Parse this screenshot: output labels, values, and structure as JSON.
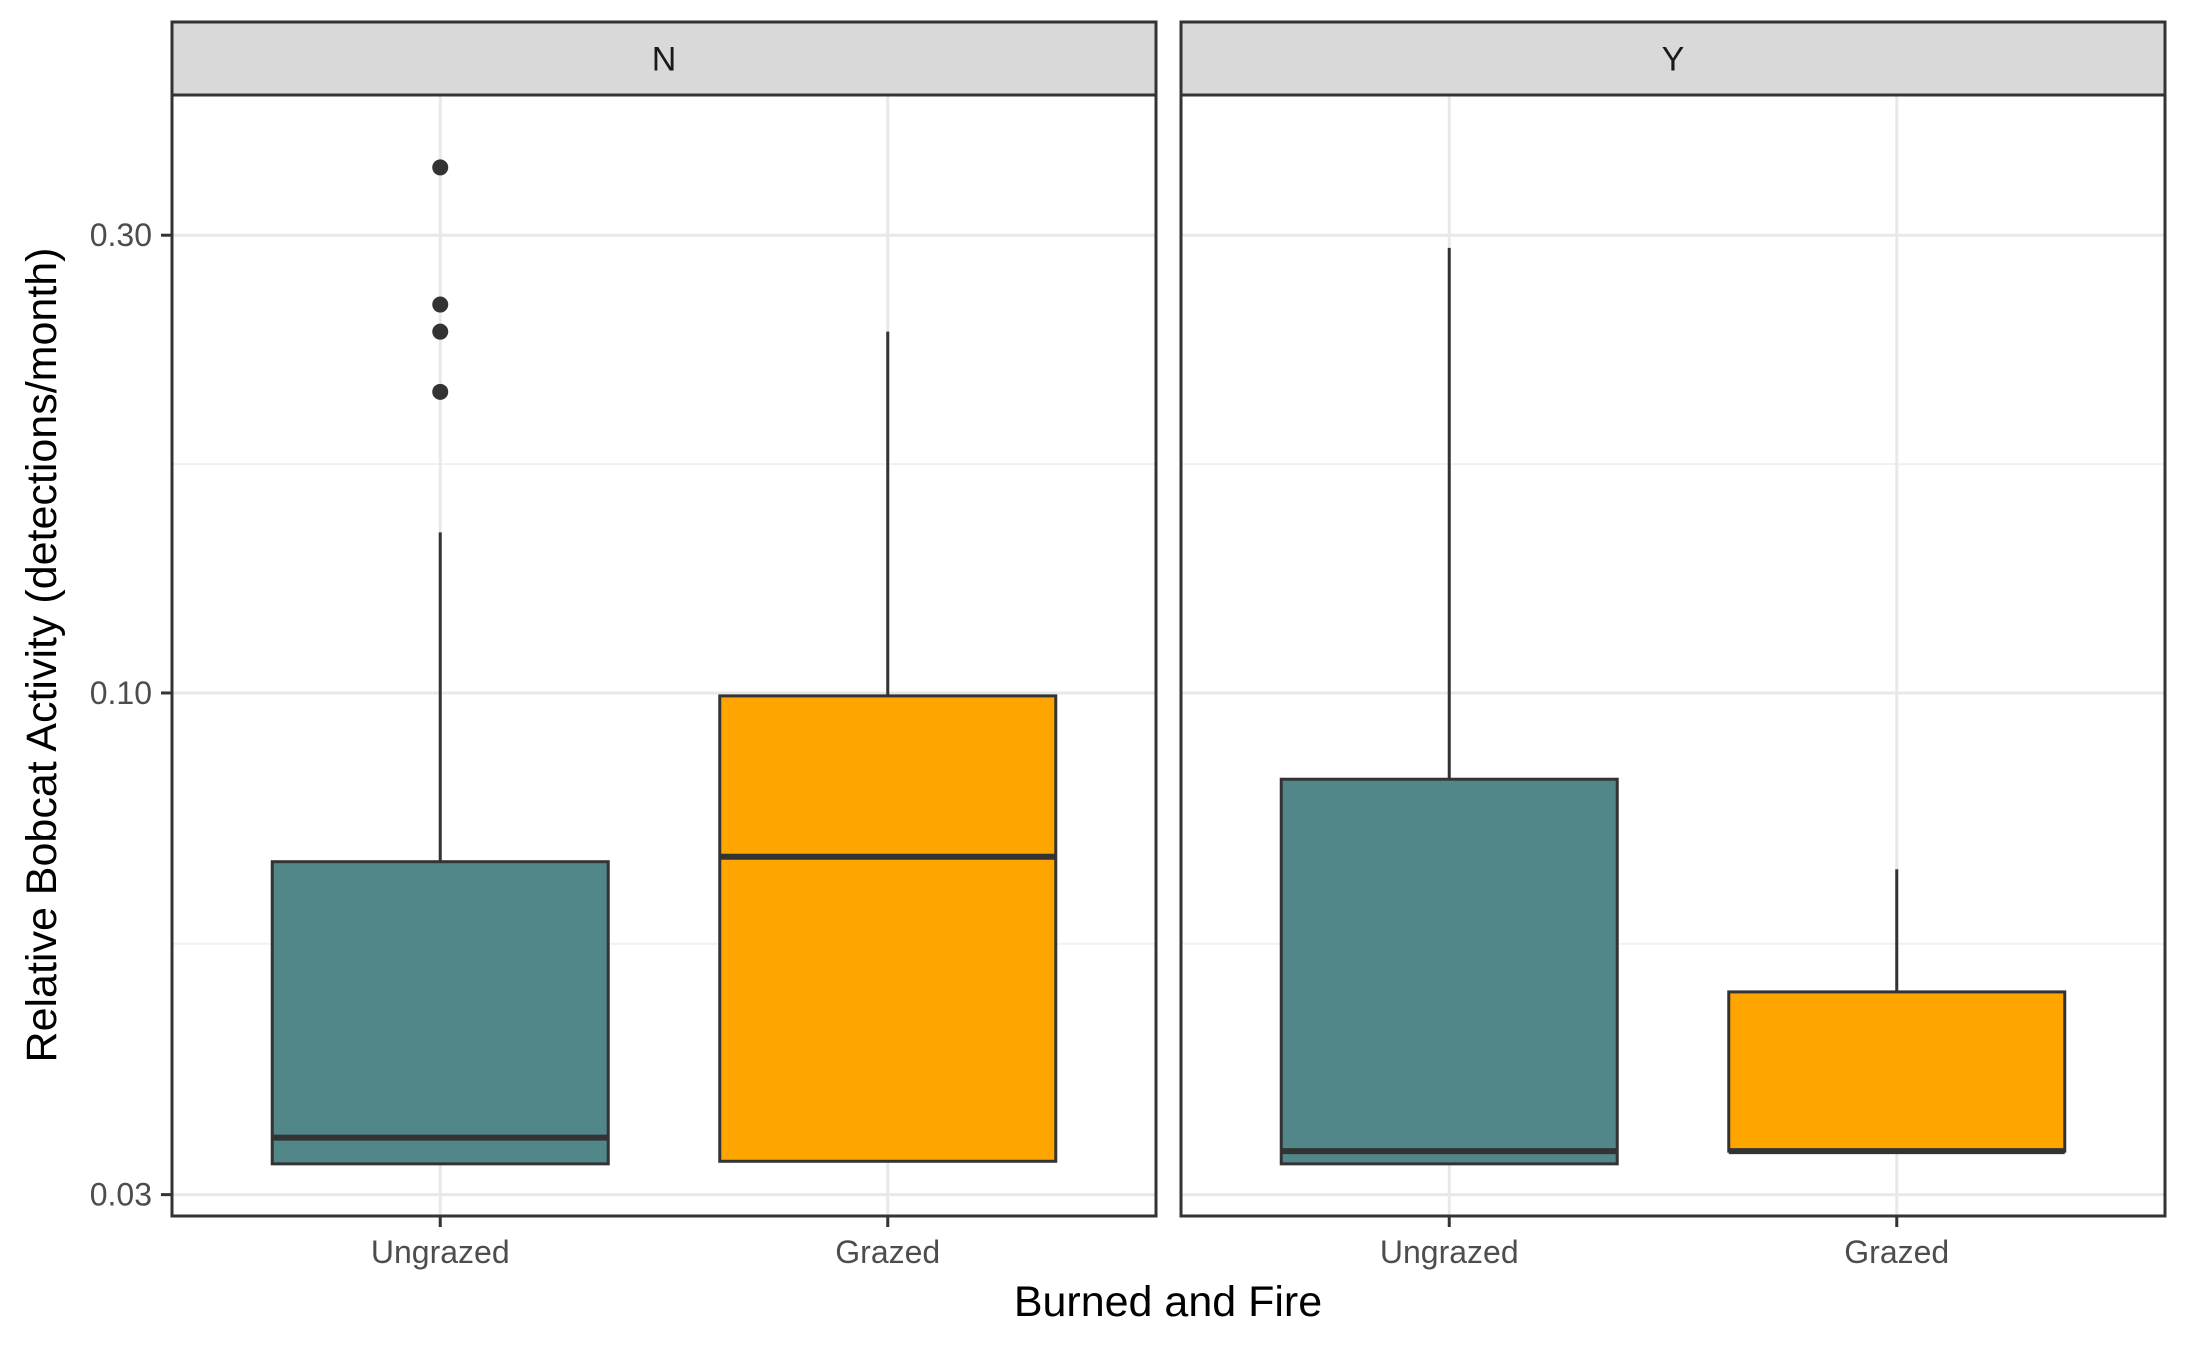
{
  "chart_data": {
    "type": "boxplot",
    "xlabel": "Burned and Fire",
    "ylabel": "Relative Bobcat Activity (detections/month)",
    "y_scale": "log",
    "ylim": [
      0.0285,
      0.42
    ],
    "yticks": [
      0.03,
      0.1,
      0.3
    ],
    "ytick_labels": [
      "0.03",
      "0.10",
      "0.30"
    ],
    "categories": [
      "Ungrazed",
      "Grazed"
    ],
    "facets": [
      {
        "label": "N",
        "boxes": [
          {
            "category": "Ungrazed",
            "color": "#52878a",
            "whisker_low": 0.0323,
            "q1": 0.0323,
            "median": 0.0344,
            "q3": 0.0667,
            "whisker_high": 0.147,
            "outliers": [
              0.353,
              0.254,
              0.238,
              0.206
            ]
          },
          {
            "category": "Grazed",
            "color": "#ffa500",
            "whisker_low": 0.0325,
            "q1": 0.0325,
            "median": 0.0675,
            "q3": 0.0993,
            "whisker_high": 0.238,
            "outliers": []
          }
        ]
      },
      {
        "label": "Y",
        "boxes": [
          {
            "category": "Ungrazed",
            "color": "#52878a",
            "whisker_low": 0.0323,
            "q1": 0.0323,
            "median": 0.0333,
            "q3": 0.0813,
            "whisker_high": 0.291,
            "outliers": []
          },
          {
            "category": "Grazed",
            "color": "#ffa500",
            "whisker_low": 0.0333,
            "q1": 0.0333,
            "median": 0.0333,
            "q3": 0.0488,
            "whisker_high": 0.0655,
            "outliers": []
          }
        ]
      }
    ],
    "grid": true,
    "legend": "none"
  }
}
